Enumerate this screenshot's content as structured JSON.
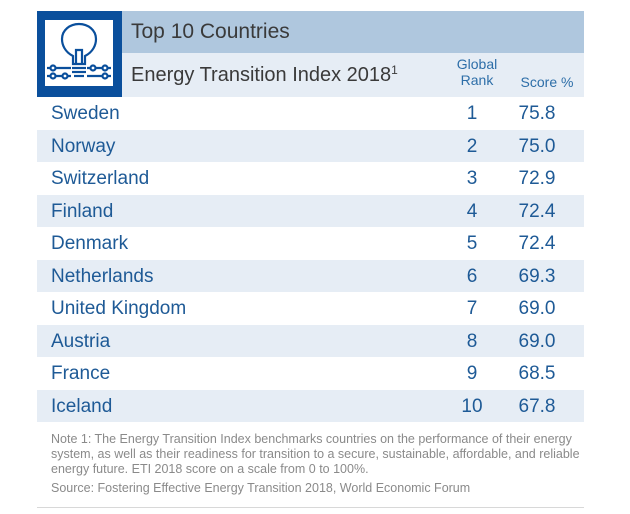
{
  "header": {
    "title": "Top 10 Countries",
    "subtitle": "Energy Transition Index 2018",
    "subtitle_footnote": "1",
    "icon": "lightbulb-circuit-icon",
    "col_rank_line1": "Global",
    "col_rank_line2": "Rank",
    "col_score": "Score %"
  },
  "rows": [
    {
      "country": "Sweden",
      "rank": "1",
      "score": "75.8"
    },
    {
      "country": "Norway",
      "rank": "2",
      "score": "75.0"
    },
    {
      "country": "Switzerland",
      "rank": "3",
      "score": "72.9"
    },
    {
      "country": "Finland",
      "rank": "4",
      "score": "72.4"
    },
    {
      "country": "Denmark",
      "rank": "5",
      "score": "72.4"
    },
    {
      "country": "Netherlands",
      "rank": "6",
      "score": "69.3"
    },
    {
      "country": "United Kingdom",
      "rank": "7",
      "score": "69.0"
    },
    {
      "country": "Austria",
      "rank": "8",
      "score": "69.0"
    },
    {
      "country": "France",
      "rank": "9",
      "score": "68.5"
    },
    {
      "country": "Iceland",
      "rank": "10",
      "score": "67.8"
    }
  ],
  "notes": {
    "note1": "Note 1: The Energy Transition Index benchmarks countries on the performance of their energy system, as well as their readiness for transition to a secure, sustainable, affordable, and reliable energy future. ETI 2018 score on a scale from 0 to 100%.",
    "source": "Source: Fostering Effective Energy Transition 2018, World Economic Forum"
  },
  "colors": {
    "brand_blue": "#0a4f9c",
    "title_band": "#afc7de",
    "alt_row": "#e6edf5",
    "text_blue": "#1e5a96"
  }
}
